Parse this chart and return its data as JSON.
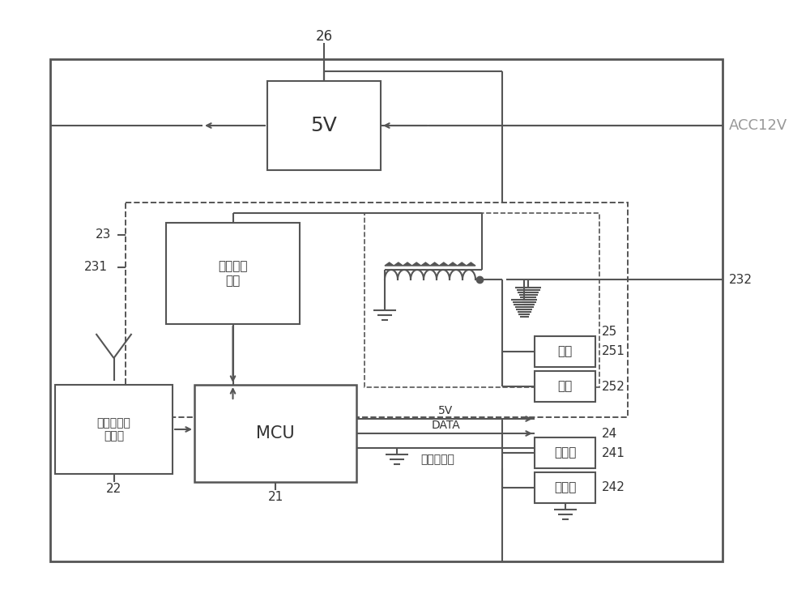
{
  "bg": "#ffffff",
  "lc": "#555555",
  "tc": "#333333",
  "acc_color": "#999999",
  "lw_main": 1.5,
  "lw_outer": 1.8,
  "labels": {
    "26": "26",
    "22": "22",
    "21": "21",
    "23": "23",
    "231": "231",
    "232": "232",
    "25": "25",
    "251": "251",
    "252": "252",
    "24": "24",
    "241": "241",
    "242": "242",
    "ACC12V": "ACC12V",
    "5V_box": "5V",
    "wuxian": "无线接收\n单元",
    "mcu": "MCU",
    "first_module": "第一接收无\n线模块",
    "5V_line": "5V",
    "DATA": "DATA",
    "gnd_disp": "显示器地线",
    "brake": "刹车",
    "reverse": "倒车",
    "display": "显示器",
    "buzzer": "蜂鸣器"
  }
}
